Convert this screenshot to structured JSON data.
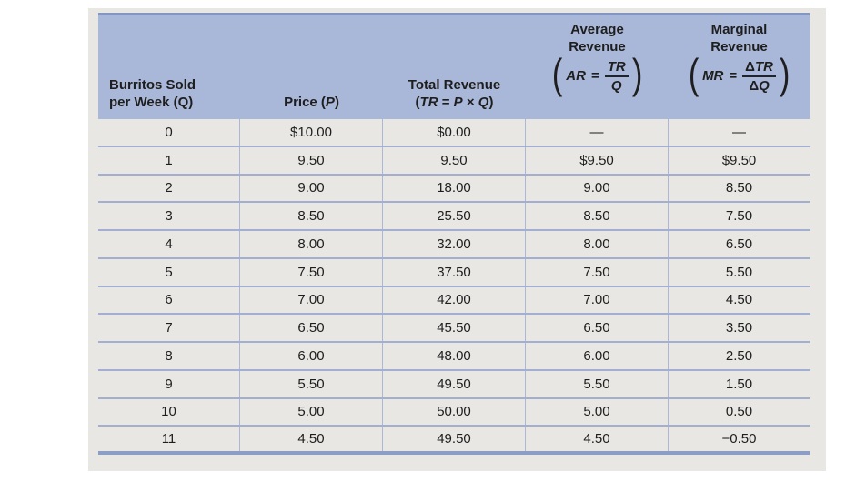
{
  "chart_data": {
    "type": "table",
    "title": "Burritos sold per week: price, total revenue, average revenue, marginal revenue",
    "columns": [
      "Burritos Sold per Week (Q)",
      "Price (P)",
      "Total Revenue (TR = P × Q)",
      "Average Revenue (AR = TR/Q)",
      "Marginal Revenue (MR = ΔTR/ΔQ)"
    ],
    "quantity": [
      0,
      1,
      2,
      3,
      4,
      5,
      6,
      7,
      8,
      9,
      10,
      11
    ],
    "series": [
      {
        "name": "Price (P)",
        "values": [
          10.0,
          9.5,
          9.0,
          8.5,
          8.0,
          7.5,
          7.0,
          6.5,
          6.0,
          5.5,
          5.0,
          4.5
        ]
      },
      {
        "name": "Total Revenue (TR)",
        "values": [
          0.0,
          9.5,
          18.0,
          25.5,
          32.0,
          37.5,
          42.0,
          45.5,
          48.0,
          49.5,
          50.0,
          49.5
        ]
      },
      {
        "name": "Average Revenue (AR)",
        "values": [
          null,
          9.5,
          9.0,
          8.5,
          8.0,
          7.5,
          7.0,
          6.5,
          6.0,
          5.5,
          5.0,
          4.5
        ]
      },
      {
        "name": "Marginal Revenue (MR)",
        "values": [
          null,
          9.5,
          8.5,
          7.5,
          6.5,
          5.5,
          4.5,
          3.5,
          2.5,
          1.5,
          0.5,
          -0.5
        ]
      }
    ]
  },
  "headers": {
    "quantity": {
      "line1": "Burritos Sold",
      "line2": "per Week (Q)"
    },
    "price": {
      "prefix": "Price (",
      "var": "P",
      "suffix": ")"
    },
    "total_revenue": {
      "line1": "Total Revenue",
      "open": "(",
      "var1": "TR",
      "eq": "=",
      "var2": "P",
      "times": "×",
      "var3": "Q",
      "close": ")"
    },
    "average_revenue": {
      "line1": "Average",
      "line2": "Revenue",
      "open": "(",
      "lhs": "AR",
      "eq": "=",
      "num": "TR",
      "den": "Q",
      "close": ")"
    },
    "marginal_revenue": {
      "line1": "Marginal",
      "line2": "Revenue",
      "open": "(",
      "lhs": "MR",
      "eq": "=",
      "num_delta": "Δ",
      "num_var": "TR",
      "den_delta": "Δ",
      "den_var": "Q",
      "close": ")"
    }
  },
  "table": {
    "rows": [
      [
        "0",
        "$10.00",
        "$0.00",
        "—",
        "—"
      ],
      [
        "1",
        "9.50",
        "9.50",
        "$9.50",
        "$9.50"
      ],
      [
        "2",
        "9.00",
        "18.00",
        "9.00",
        "8.50"
      ],
      [
        "3",
        "8.50",
        "25.50",
        "8.50",
        "7.50"
      ],
      [
        "4",
        "8.00",
        "32.00",
        "8.00",
        "6.50"
      ],
      [
        "5",
        "7.50",
        "37.50",
        "7.50",
        "5.50"
      ],
      [
        "6",
        "7.00",
        "42.00",
        "7.00",
        "4.50"
      ],
      [
        "7",
        "6.50",
        "45.50",
        "6.50",
        "3.50"
      ],
      [
        "8",
        "6.00",
        "48.00",
        "6.00",
        "2.50"
      ],
      [
        "9",
        "5.50",
        "49.50",
        "5.50",
        "1.50"
      ],
      [
        "10",
        "5.00",
        "50.00",
        "5.00",
        "0.50"
      ],
      [
        "11",
        "4.50",
        "49.50",
        "4.50",
        "−0.50"
      ]
    ]
  }
}
